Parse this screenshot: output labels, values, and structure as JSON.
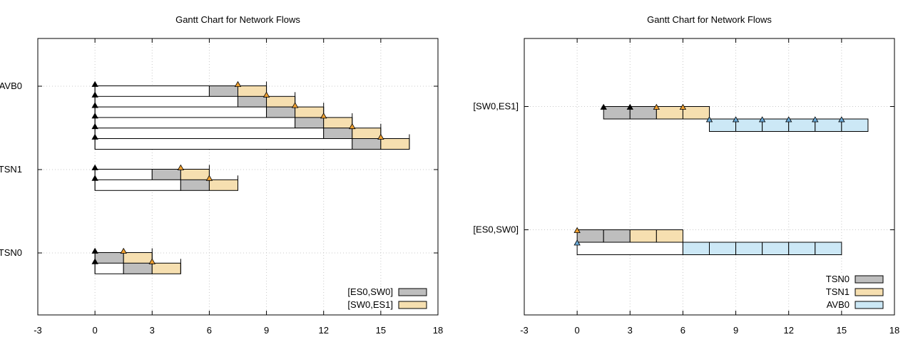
{
  "chart_data": [
    {
      "type": "gantt",
      "title": "Gantt Chart for Network Flows",
      "xlim": [
        -3,
        18
      ],
      "xticks": [
        -3,
        0,
        3,
        6,
        9,
        12,
        15,
        18
      ],
      "rows": [
        "TSN0",
        "TSN1",
        "AVB0"
      ],
      "legend": [
        {
          "label": "[ES0,SW0]",
          "color": "#bebebe"
        },
        {
          "label": "[SW0,ES1]",
          "color": "#f6dfb0"
        }
      ],
      "legend_position": "bottom-right",
      "flows": [
        {
          "row": "TSN0",
          "sub": 0,
          "release": 0,
          "segments": [
            {
              "link": "[ES0,SW0]",
              "start": 0,
              "end": 1.5
            },
            {
              "link": "[SW0,ES1]",
              "start": 1.5,
              "end": 3
            }
          ],
          "markers": [
            1.5
          ]
        },
        {
          "row": "TSN0",
          "sub": 1,
          "release": 0,
          "segments": [
            {
              "link": "[ES0,SW0]",
              "start": 1.5,
              "end": 3
            },
            {
              "link": "[SW0,ES1]",
              "start": 3,
              "end": 4.5
            }
          ],
          "markers": [
            3
          ]
        },
        {
          "row": "TSN1",
          "sub": 0,
          "release": 0,
          "segments": [
            {
              "link": "[ES0,SW0]",
              "start": 3,
              "end": 4.5
            },
            {
              "link": "[SW0,ES1]",
              "start": 4.5,
              "end": 6
            }
          ],
          "markers": [
            4.5
          ]
        },
        {
          "row": "TSN1",
          "sub": 1,
          "release": 0,
          "segments": [
            {
              "link": "[ES0,SW0]",
              "start": 4.5,
              "end": 6
            },
            {
              "link": "[SW0,ES1]",
              "start": 6,
              "end": 7.5
            }
          ],
          "markers": [
            6
          ]
        },
        {
          "row": "AVB0",
          "sub": 0,
          "release": 0,
          "segments": [
            {
              "link": "[ES0,SW0]",
              "start": 6,
              "end": 7.5
            },
            {
              "link": "[SW0,ES1]",
              "start": 7.5,
              "end": 9
            }
          ],
          "markers": [
            7.5
          ]
        },
        {
          "row": "AVB0",
          "sub": 1,
          "release": 0,
          "segments": [
            {
              "link": "[ES0,SW0]",
              "start": 7.5,
              "end": 9
            },
            {
              "link": "[SW0,ES1]",
              "start": 9,
              "end": 10.5
            }
          ],
          "markers": [
            9
          ]
        },
        {
          "row": "AVB0",
          "sub": 2,
          "release": 0,
          "segments": [
            {
              "link": "[ES0,SW0]",
              "start": 9,
              "end": 10.5
            },
            {
              "link": "[SW0,ES1]",
              "start": 10.5,
              "end": 12
            }
          ],
          "markers": [
            10.5
          ]
        },
        {
          "row": "AVB0",
          "sub": 3,
          "release": 0,
          "segments": [
            {
              "link": "[ES0,SW0]",
              "start": 10.5,
              "end": 12
            },
            {
              "link": "[SW0,ES1]",
              "start": 12,
              "end": 13.5
            }
          ],
          "markers": [
            12
          ]
        },
        {
          "row": "AVB0",
          "sub": 4,
          "release": 0,
          "segments": [
            {
              "link": "[ES0,SW0]",
              "start": 12,
              "end": 13.5
            },
            {
              "link": "[SW0,ES1]",
              "start": 13.5,
              "end": 15
            }
          ],
          "markers": [
            13.5
          ]
        },
        {
          "row": "AVB0",
          "sub": 5,
          "release": 0,
          "segments": [
            {
              "link": "[ES0,SW0]",
              "start": 13.5,
              "end": 15
            },
            {
              "link": "[SW0,ES1]",
              "start": 15,
              "end": 16.5
            }
          ],
          "markers": [
            15
          ]
        }
      ]
    },
    {
      "type": "gantt",
      "title": "Gantt Chart for Network Flows",
      "xlim": [
        -3,
        18
      ],
      "xticks": [
        -3,
        0,
        3,
        6,
        9,
        12,
        15,
        18
      ],
      "rows": [
        "[ES0,SW0]",
        "[SW0,ES1]"
      ],
      "legend": [
        {
          "label": "TSN0",
          "color": "#bebebe"
        },
        {
          "label": "TSN1",
          "color": "#f6dfb0"
        },
        {
          "label": "AVB0",
          "color": "#cce8f6"
        }
      ],
      "legend_position": "bottom-right",
      "lanes": [
        {
          "row": "[ES0,SW0]",
          "sub": 0,
          "start": 0,
          "segments": [
            {
              "flow": "TSN0",
              "start": 0,
              "end": 1.5
            },
            {
              "flow": "TSN0",
              "start": 1.5,
              "end": 3
            },
            {
              "flow": "TSN1",
              "start": 3,
              "end": 4.5
            },
            {
              "flow": "TSN1",
              "start": 4.5,
              "end": 6
            }
          ],
          "markers": [
            {
              "x": 0,
              "color": "#f0a030"
            }
          ]
        },
        {
          "row": "[ES0,SW0]",
          "sub": 1,
          "start": 0,
          "segments": [
            {
              "flow": "AVB0",
              "start": 6,
              "end": 7.5
            },
            {
              "flow": "AVB0",
              "start": 7.5,
              "end": 9
            },
            {
              "flow": "AVB0",
              "start": 9,
              "end": 10.5
            },
            {
              "flow": "AVB0",
              "start": 10.5,
              "end": 12
            },
            {
              "flow": "AVB0",
              "start": 12,
              "end": 13.5
            },
            {
              "flow": "AVB0",
              "start": 13.5,
              "end": 15
            }
          ],
          "markers": [
            {
              "x": 0,
              "color": "#6aaad8"
            }
          ]
        },
        {
          "row": "[SW0,ES1]",
          "sub": 0,
          "start": 1.5,
          "segments": [
            {
              "flow": "TSN0",
              "start": 1.5,
              "end": 3
            },
            {
              "flow": "TSN0",
              "start": 3,
              "end": 4.5
            },
            {
              "flow": "TSN1",
              "start": 4.5,
              "end": 6
            },
            {
              "flow": "TSN1",
              "start": 6,
              "end": 7.5
            }
          ],
          "markers": [
            {
              "x": 1.5,
              "color": "#000000"
            },
            {
              "x": 3,
              "color": "#000000"
            },
            {
              "x": 4.5,
              "color": "#f0a030"
            },
            {
              "x": 6,
              "color": "#f0a030"
            }
          ]
        },
        {
          "row": "[SW0,ES1]",
          "sub": 1,
          "start": 7.5,
          "segments": [
            {
              "flow": "AVB0",
              "start": 7.5,
              "end": 9
            },
            {
              "flow": "AVB0",
              "start": 9,
              "end": 10.5
            },
            {
              "flow": "AVB0",
              "start": 10.5,
              "end": 12
            },
            {
              "flow": "AVB0",
              "start": 12,
              "end": 13.5
            },
            {
              "flow": "AVB0",
              "start": 13.5,
              "end": 15
            },
            {
              "flow": "AVB0",
              "start": 15,
              "end": 16.5
            }
          ],
          "markers": [
            {
              "x": 7.5,
              "color": "#6aaad8"
            },
            {
              "x": 9,
              "color": "#6aaad8"
            },
            {
              "x": 10.5,
              "color": "#6aaad8"
            },
            {
              "x": 12,
              "color": "#6aaad8"
            },
            {
              "x": 13.5,
              "color": "#6aaad8"
            },
            {
              "x": 15,
              "color": "#6aaad8"
            }
          ]
        }
      ]
    }
  ],
  "colors": {
    "es0sw0": "#bebebe",
    "sw0es1": "#f6dfb0",
    "avb": "#cce8f6",
    "marker_orange": "#f0a030",
    "marker_blue": "#6aaad8",
    "marker_black": "#000000"
  }
}
